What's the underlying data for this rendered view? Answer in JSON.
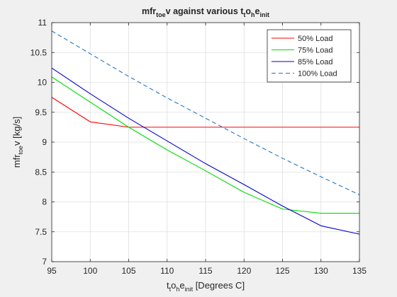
{
  "chart_data": {
    "type": "line",
    "title": {
      "base": "mfr",
      "sub1": "toe",
      "mid": "v against various t",
      "sub2": "t",
      "mid2": "o",
      "sub3": "h",
      "mid3": "e",
      "sub4": "init"
    },
    "xlabel": {
      "p1": "t",
      "s1": "t",
      "p2": "o",
      "s2": "h",
      "p3": "e",
      "s3": "init",
      "p4": " [Degrees C]"
    },
    "ylabel": {
      "p1": "mfr",
      "s1": "toe",
      "p2": "v [kg/s]"
    },
    "xlim": [
      95,
      135
    ],
    "ylim": [
      7,
      11
    ],
    "xticks": [
      95,
      100,
      105,
      110,
      115,
      120,
      125,
      130,
      135
    ],
    "yticks": [
      7,
      7.5,
      8,
      8.5,
      9,
      9.5,
      10,
      10.5,
      11
    ],
    "ytick_labels": [
      "7",
      "7.5",
      "8",
      "8.5",
      "9",
      "9.5",
      "10",
      "10.5",
      "11"
    ],
    "grid": true,
    "legend_position": "top-right",
    "x": [
      95,
      100,
      105,
      110,
      115,
      120,
      125,
      130,
      135
    ],
    "series": [
      {
        "name": "50% Load",
        "color": "#ff0000",
        "dash": "solid",
        "values": [
          9.75,
          9.34,
          9.25,
          9.25,
          9.25,
          9.25,
          9.25,
          9.25,
          9.25
        ]
      },
      {
        "name": "75% Load",
        "color": "#00dd00",
        "dash": "solid",
        "values": [
          10.09,
          9.67,
          9.25,
          8.87,
          8.52,
          8.16,
          7.88,
          7.81,
          7.81
        ]
      },
      {
        "name": "85% Load",
        "color": "#0000cc",
        "dash": "solid",
        "values": [
          10.24,
          9.81,
          9.4,
          9.02,
          8.64,
          8.29,
          7.93,
          7.6,
          7.46
        ]
      },
      {
        "name": "100% Load",
        "color": "#1f77c4",
        "dash": "dashed",
        "values": [
          10.86,
          10.48,
          10.1,
          9.74,
          9.4,
          9.06,
          8.73,
          8.42,
          8.12
        ]
      }
    ]
  }
}
